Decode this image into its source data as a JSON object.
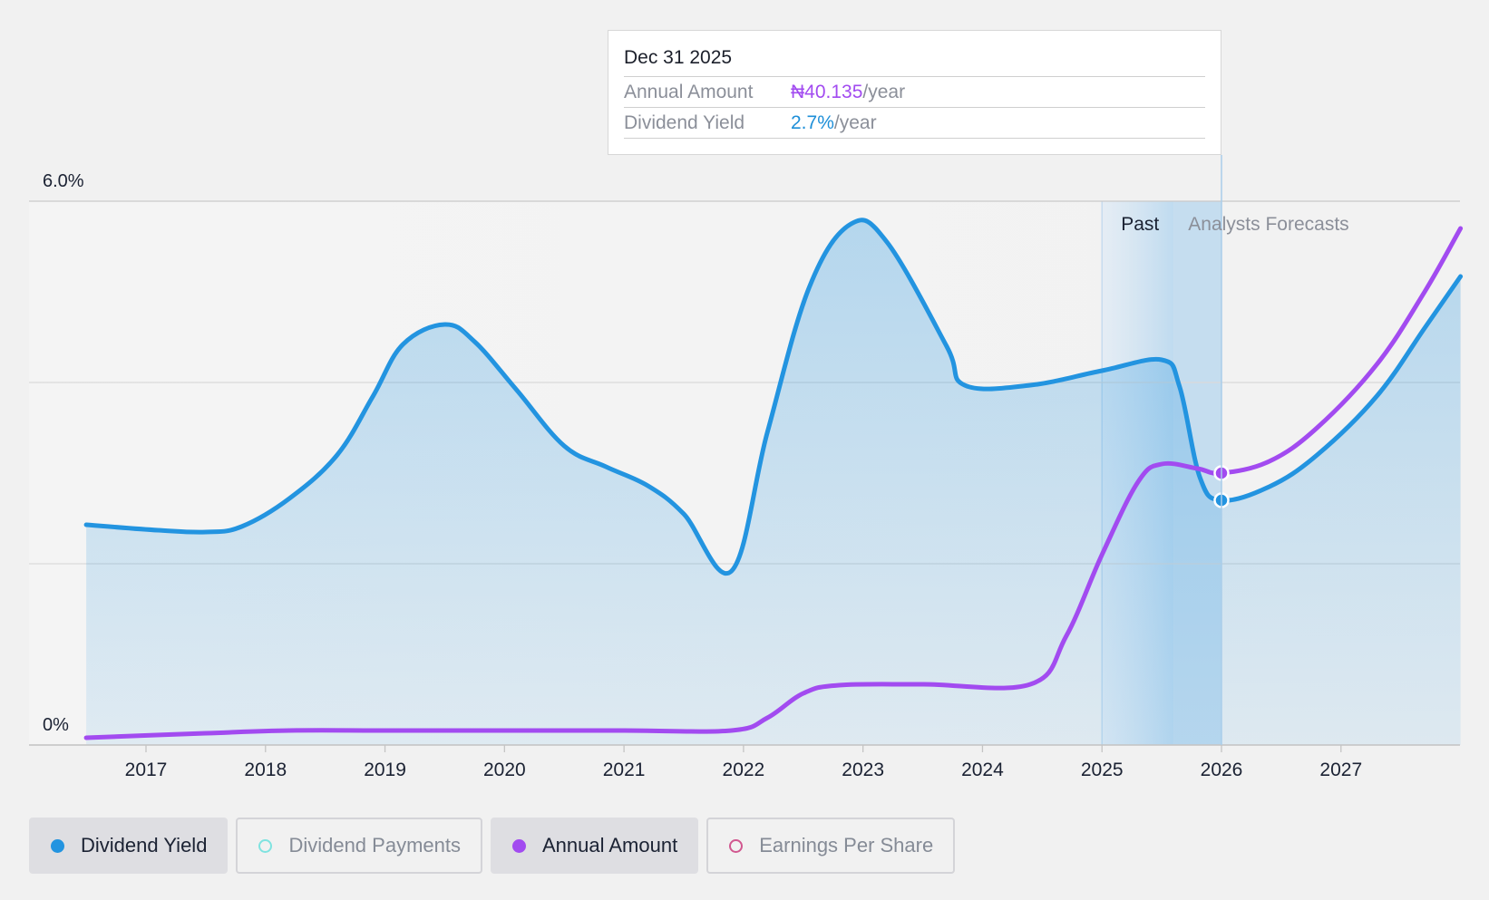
{
  "tooltip": {
    "date": "Dec 31 2025",
    "rows": [
      {
        "label": "Annual Amount",
        "value": "₦40.135",
        "unit": "/year",
        "color": "#a24bf0"
      },
      {
        "label": "Dividend Yield",
        "value": "2.7%",
        "unit": "/year",
        "color": "#1e8fd8"
      }
    ]
  },
  "legend": [
    {
      "label": "Dividend Yield",
      "color": "#2394e0",
      "active": true,
      "filled": true,
      "icon": "filled-circle"
    },
    {
      "label": "Dividend Payments",
      "color": "#7fe3e0",
      "active": false,
      "filled": false,
      "icon": "hollow-circle"
    },
    {
      "label": "Annual Amount",
      "color": "#a24bf0",
      "active": true,
      "filled": true,
      "icon": "filled-circle"
    },
    {
      "label": "Earnings Per Share",
      "color": "#d1578f",
      "active": false,
      "filled": false,
      "icon": "hollow-circle"
    }
  ],
  "chart_data": {
    "type": "area",
    "x_axis": {
      "ticks": [
        "2017",
        "2018",
        "2019",
        "2020",
        "2021",
        "2022",
        "2023",
        "2024",
        "2025",
        "2026",
        "2027"
      ],
      "range": [
        2016.5,
        2028.0
      ]
    },
    "y_axis": {
      "tick_labels": [
        "6.0%",
        "0%"
      ],
      "range": [
        0,
        6.0
      ],
      "gridlines": [
        0,
        2.0,
        4.0,
        6.0
      ],
      "grid": true
    },
    "regions": {
      "past_label": "Past",
      "forecast_label": "Analysts Forecasts",
      "past_band": [
        2025.0,
        2025.6
      ],
      "forecast_band": [
        2025.6,
        2026.0
      ],
      "forecast_start": 2026.0
    },
    "hover_x": 2026.0,
    "series": [
      {
        "name": "Dividend Yield",
        "color": "#2394e0",
        "fill": true,
        "marker_at": 2026.0,
        "points": [
          [
            2016.5,
            2.43
          ],
          [
            2017.1,
            2.37
          ],
          [
            2017.5,
            2.35
          ],
          [
            2017.8,
            2.41
          ],
          [
            2018.2,
            2.72
          ],
          [
            2018.6,
            3.2
          ],
          [
            2018.9,
            3.85
          ],
          [
            2019.15,
            4.42
          ],
          [
            2019.5,
            4.64
          ],
          [
            2019.75,
            4.45
          ],
          [
            2020.1,
            3.92
          ],
          [
            2020.5,
            3.3
          ],
          [
            2020.85,
            3.07
          ],
          [
            2021.2,
            2.86
          ],
          [
            2021.5,
            2.55
          ],
          [
            2021.9,
            1.92
          ],
          [
            2022.2,
            3.45
          ],
          [
            2022.55,
            5.05
          ],
          [
            2022.9,
            5.75
          ],
          [
            2023.2,
            5.55
          ],
          [
            2023.7,
            4.4
          ],
          [
            2023.85,
            3.97
          ],
          [
            2024.4,
            3.97
          ],
          [
            2025.0,
            4.13
          ],
          [
            2025.5,
            4.25
          ],
          [
            2025.65,
            3.95
          ],
          [
            2025.82,
            2.95
          ],
          [
            2026.0,
            2.7
          ],
          [
            2026.4,
            2.85
          ],
          [
            2026.8,
            3.2
          ],
          [
            2027.3,
            3.85
          ],
          [
            2027.7,
            4.6
          ],
          [
            2028.0,
            5.17
          ]
        ]
      },
      {
        "name": "Annual Amount",
        "color": "#a24bf0",
        "fill": false,
        "marker_at": 2026.0,
        "points": [
          [
            2016.5,
            0.08
          ],
          [
            2017.5,
            0.13
          ],
          [
            2018.2,
            0.16
          ],
          [
            2019.0,
            0.16
          ],
          [
            2020.0,
            0.16
          ],
          [
            2021.0,
            0.16
          ],
          [
            2021.9,
            0.16
          ],
          [
            2022.2,
            0.3
          ],
          [
            2022.5,
            0.57
          ],
          [
            2022.8,
            0.66
          ],
          [
            2023.5,
            0.67
          ],
          [
            2024.4,
            0.67
          ],
          [
            2024.7,
            1.2
          ],
          [
            2025.0,
            2.1
          ],
          [
            2025.3,
            2.9
          ],
          [
            2025.5,
            3.1
          ],
          [
            2025.8,
            3.05
          ],
          [
            2026.0,
            3.0
          ],
          [
            2026.4,
            3.13
          ],
          [
            2026.8,
            3.5
          ],
          [
            2027.3,
            4.2
          ],
          [
            2027.7,
            5.0
          ],
          [
            2028.0,
            5.7
          ]
        ]
      }
    ]
  }
}
